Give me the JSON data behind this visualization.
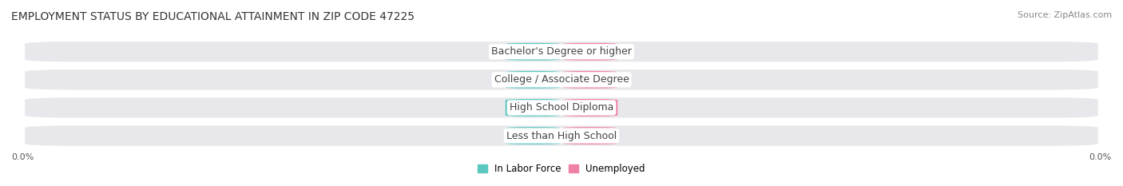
{
  "title": "EMPLOYMENT STATUS BY EDUCATIONAL ATTAINMENT IN ZIP CODE 47225",
  "source": "Source: ZipAtlas.com",
  "categories": [
    "Less than High School",
    "High School Diploma",
    "College / Associate Degree",
    "Bachelor's Degree or higher"
  ],
  "labor_force_values": [
    0.0,
    0.0,
    0.0,
    0.0
  ],
  "unemployed_values": [
    0.0,
    0.0,
    0.0,
    0.0
  ],
  "labor_force_color": "#5bc8c0",
  "unemployed_color": "#f080a8",
  "row_bg_color": "#e8e8ec",
  "x_min": -1.0,
  "x_max": 1.0,
  "left_label": "0.0%",
  "right_label": "0.0%",
  "legend_labor": "In Labor Force",
  "legend_unemployed": "Unemployed",
  "title_fontsize": 10,
  "source_fontsize": 8,
  "value_fontsize": 8,
  "category_fontsize": 9,
  "bar_height": 0.62,
  "background_color": "#ffffff",
  "category_label_color": "#444444",
  "value_label_color": "#ffffff"
}
